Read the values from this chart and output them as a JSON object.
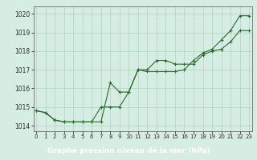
{
  "line1_x": [
    0,
    1,
    2,
    3,
    4,
    5,
    6,
    7,
    8,
    9,
    10,
    11,
    12,
    13,
    14,
    15,
    16,
    17,
    18,
    19,
    20,
    21,
    22,
    23
  ],
  "line1_y": [
    1014.8,
    1014.7,
    1014.3,
    1014.2,
    1014.2,
    1014.2,
    1014.2,
    1015.0,
    1015.0,
    1015.0,
    1015.8,
    1017.0,
    1017.0,
    1017.5,
    1017.5,
    1017.3,
    1017.3,
    1017.3,
    1017.8,
    1018.0,
    1018.1,
    1018.5,
    1019.1,
    1019.1
  ],
  "line2_x": [
    0,
    1,
    2,
    3,
    4,
    5,
    6,
    7,
    8,
    9,
    10,
    11,
    12,
    13,
    14,
    15,
    16,
    17,
    18,
    19,
    20,
    21,
    22,
    23
  ],
  "line2_y": [
    1014.8,
    1014.7,
    1014.3,
    1014.2,
    1014.2,
    1014.2,
    1014.2,
    1014.2,
    1016.3,
    1015.8,
    1015.8,
    1017.0,
    1016.9,
    1016.9,
    1016.9,
    1016.9,
    1017.0,
    1017.5,
    1017.9,
    1018.1,
    1018.6,
    1019.1,
    1019.9,
    1019.9
  ],
  "line_color": "#2d6a2d",
  "bg_color": "#d6ede4",
  "grid_color": "#b0d4c0",
  "xlabel": "Graphe pression niveau de la mer (hPa)",
  "xlabel_bg": "#2e6b2e",
  "xlabel_color": "#ffffff",
  "yticks": [
    1014,
    1015,
    1016,
    1017,
    1018,
    1019,
    1020
  ],
  "xticks": [
    0,
    1,
    2,
    3,
    4,
    5,
    6,
    7,
    8,
    9,
    10,
    11,
    12,
    13,
    14,
    15,
    16,
    17,
    18,
    19,
    20,
    21,
    22,
    23
  ],
  "xlim": [
    -0.3,
    23.3
  ],
  "ylim": [
    1013.7,
    1020.4
  ]
}
